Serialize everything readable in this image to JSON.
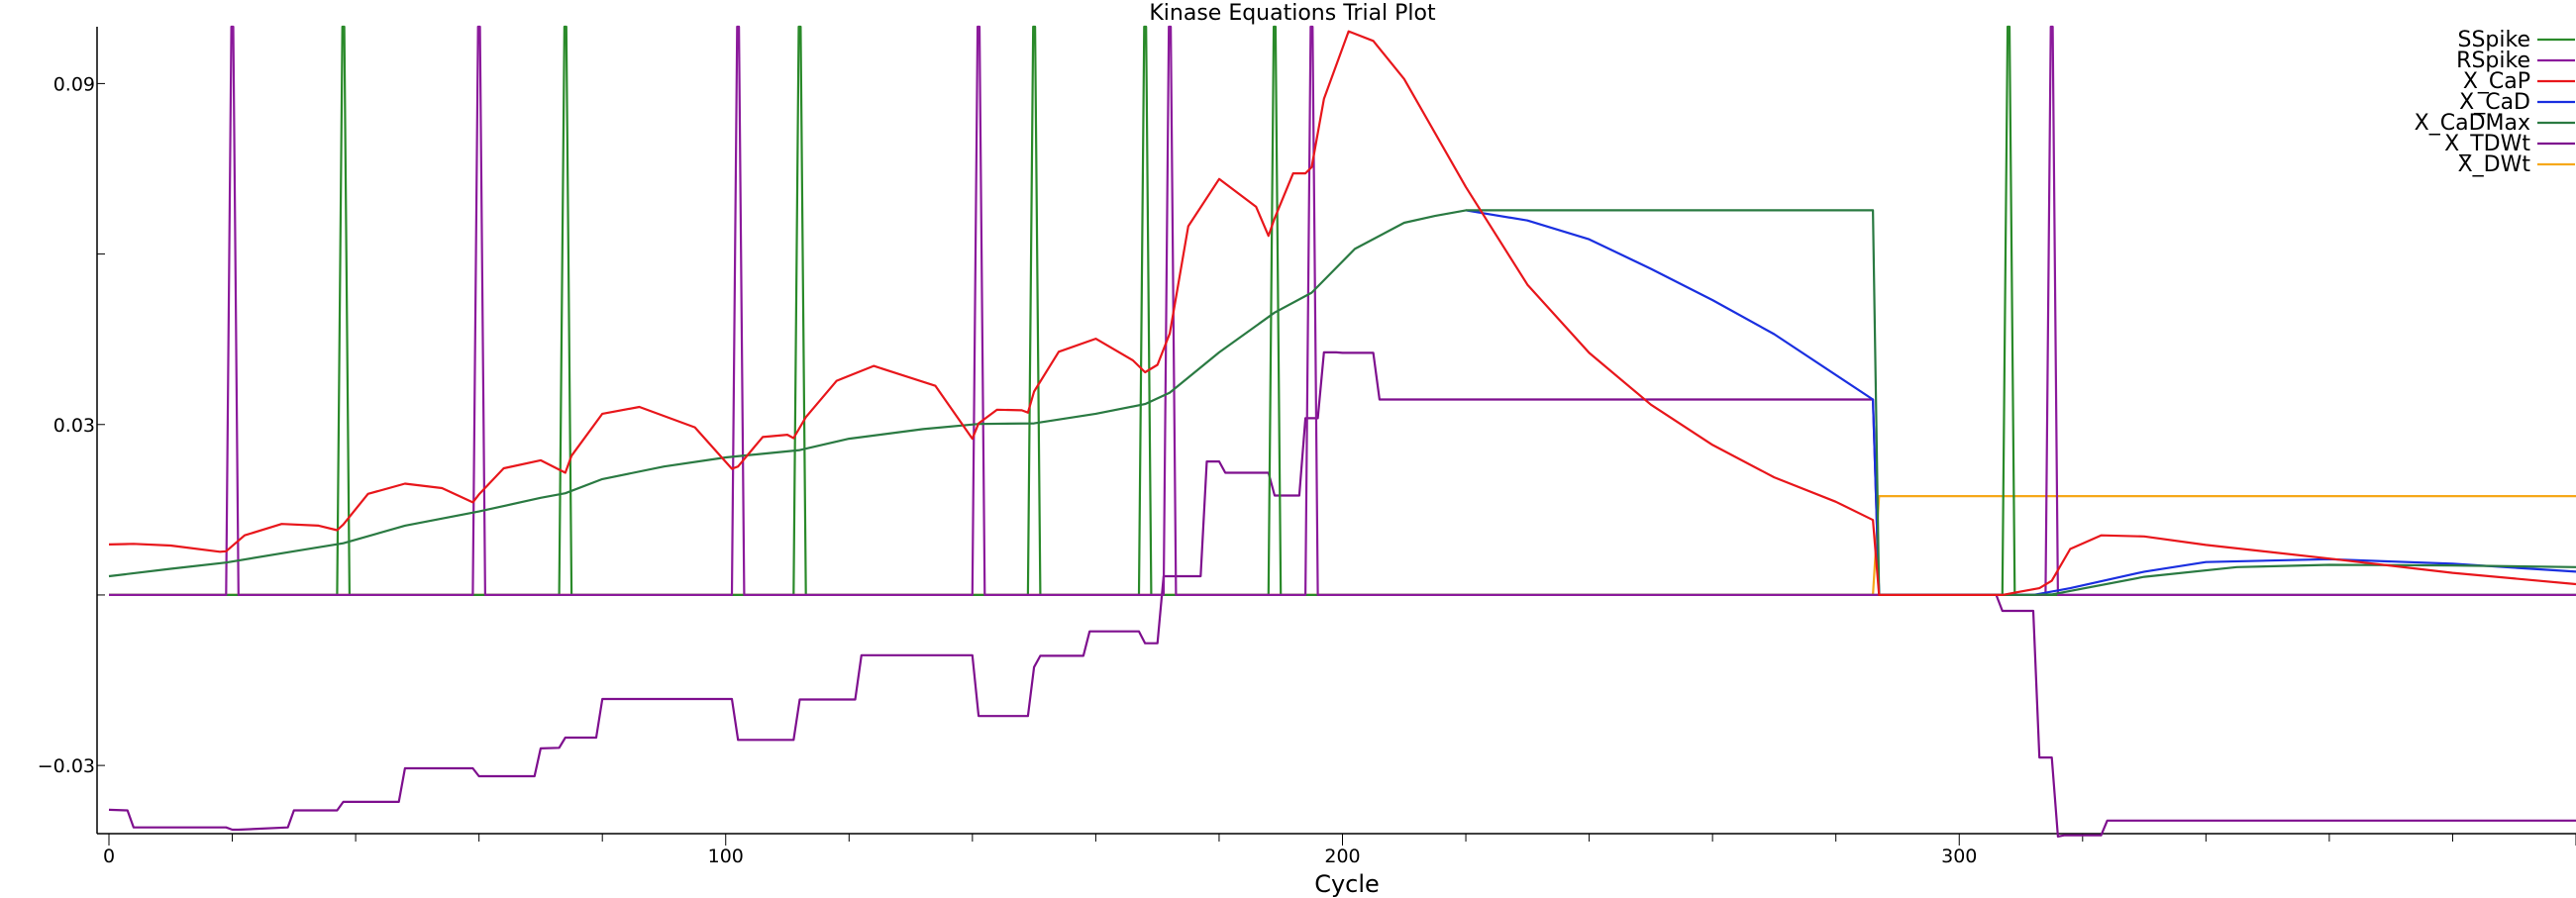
{
  "chart_data": {
    "type": "line",
    "title": "Kinase Equations Trial Plot",
    "xlabel": "Cycle",
    "ylabel": "",
    "xlim": [
      0,
      400
    ],
    "ylim": [
      -0.042,
      0.1
    ],
    "x_ticks": [
      0,
      100,
      200,
      300
    ],
    "x_tick_labels": [
      "0",
      "100",
      "200",
      "300"
    ],
    "y_ticks": [
      0.09,
      0.03,
      -0.03
    ],
    "y_tick_labels": [
      "0.09",
      "0.03",
      "−0.03"
    ],
    "grid": false,
    "legend_position": "top-right",
    "colors": {
      "SSpike": "#2a8a2a",
      "RSpike": "#8b1a9b",
      "X_CaP": "#e8161b",
      "X_CaD": "#1a2fe0",
      "X_CaDMax": "#2a7a42",
      "X_TDWt": "#7e0f8e",
      "X_DWt": "#f6a81a"
    },
    "series": [
      {
        "name": "SSpike",
        "spike_cycles": [
          38,
          74,
          112,
          150,
          168,
          189,
          308
        ],
        "values_note": "pulses from 0 to 0.1"
      },
      {
        "name": "RSpike",
        "spike_cycles": [
          20,
          60,
          102,
          141,
          172,
          195,
          315
        ],
        "values_note": "pulses from 0 to 0.1"
      },
      {
        "name": "X_CaP",
        "x": [
          0,
          4,
          10,
          18,
          19,
          22,
          28,
          34,
          37,
          38,
          42,
          48,
          54,
          59,
          60,
          64,
          70,
          74,
          75,
          80,
          86,
          95,
          101,
          102,
          106,
          110,
          111,
          113,
          118,
          124,
          134,
          140,
          141,
          144,
          148,
          149,
          150,
          154,
          160,
          166,
          168,
          170,
          172,
          175,
          180,
          186,
          188,
          189,
          192,
          194,
          195,
          197,
          201,
          205,
          210,
          220,
          230,
          240,
          250,
          260,
          270,
          280,
          286,
          287,
          300,
          307,
          313,
          315,
          318,
          323,
          330,
          340,
          360,
          380,
          400
        ],
        "values": [
          0.0089,
          0.009,
          0.0087,
          0.0076,
          0.0077,
          0.0105,
          0.0125,
          0.0122,
          0.0114,
          0.0124,
          0.0178,
          0.0196,
          0.0188,
          0.0163,
          0.0177,
          0.0223,
          0.0237,
          0.0215,
          0.0245,
          0.0319,
          0.0331,
          0.0295,
          0.0222,
          0.0226,
          0.0278,
          0.0282,
          0.0276,
          0.0313,
          0.0377,
          0.0403,
          0.0368,
          0.0275,
          0.0302,
          0.0326,
          0.0325,
          0.0321,
          0.0358,
          0.0428,
          0.0451,
          0.0413,
          0.0392,
          0.0405,
          0.046,
          0.0649,
          0.0732,
          0.0683,
          0.0632,
          0.0663,
          0.0742,
          0.0742,
          0.0753,
          0.0873,
          0.0992,
          0.0975,
          0.0908,
          0.0718,
          0.0546,
          0.0426,
          0.0335,
          0.0264,
          0.0207,
          0.0164,
          0.0132,
          0,
          0,
          0,
          0.0012,
          0.0025,
          0.0081,
          0.0105,
          0.0103,
          0.0088,
          0.0064,
          0.0039,
          0.0019
        ]
      },
      {
        "name": "X_CaD",
        "x": [
          220,
          230,
          240,
          250,
          260,
          270,
          286,
          287,
          300,
          312,
          318,
          330,
          340,
          360,
          380,
          400
        ],
        "values": [
          0.0677,
          0.0659,
          0.0626,
          0.0574,
          0.0519,
          0.0459,
          0.0344,
          0,
          0,
          0,
          0.0012,
          0.0041,
          0.0058,
          0.0063,
          0.0055,
          0.0041
        ]
      },
      {
        "name": "X_CaDMax",
        "x": [
          0,
          10,
          19,
          30,
          38,
          48,
          60,
          70,
          74,
          80,
          90,
          100,
          112,
          120,
          132,
          141,
          150,
          160,
          168,
          172,
          180,
          189,
          195,
          202,
          210,
          215,
          220,
          286,
          287,
          300,
          312,
          315,
          330,
          345,
          360,
          380,
          400
        ],
        "values": [
          0.0033,
          0.0046,
          0.0057,
          0.0077,
          0.0091,
          0.0122,
          0.0147,
          0.0171,
          0.0179,
          0.0204,
          0.0226,
          0.0242,
          0.0255,
          0.0275,
          0.0292,
          0.0301,
          0.0302,
          0.0319,
          0.0336,
          0.0356,
          0.0427,
          0.0497,
          0.0532,
          0.0609,
          0.0655,
          0.0667,
          0.0677,
          0.0677,
          0,
          0,
          0,
          0.0001,
          0.0032,
          0.0049,
          0.0053,
          0.0052,
          0.0049
        ]
      },
      {
        "name": "X_TDWt",
        "x": [
          0,
          3,
          4,
          19,
          20,
          21,
          29,
          30,
          37,
          38,
          47,
          48,
          59,
          60,
          69,
          70,
          73,
          74,
          79,
          80,
          101,
          102,
          111,
          112,
          121,
          122,
          140,
          141,
          149,
          150,
          151,
          158,
          159,
          167,
          168,
          170,
          171,
          177,
          178,
          180,
          181,
          188,
          189,
          193,
          194,
          196,
          197,
          199,
          200,
          205,
          206,
          286,
          287,
          306,
          307,
          312,
          313,
          315,
          316,
          317,
          323,
          324,
          400
        ],
        "values": [
          -0.0378,
          -0.0379,
          -0.0409,
          -0.0409,
          -0.0413,
          -0.0413,
          -0.0409,
          -0.0379,
          -0.0379,
          -0.0364,
          -0.0364,
          -0.0305,
          -0.0305,
          -0.0319,
          -0.0319,
          -0.027,
          -0.0269,
          -0.0251,
          -0.0251,
          -0.0183,
          -0.0183,
          -0.0255,
          -0.0255,
          -0.0184,
          -0.0184,
          -0.0106,
          -0.0106,
          -0.0213,
          -0.0213,
          -0.0127,
          -0.0107,
          -0.0107,
          -0.0064,
          -0.0064,
          -0.0085,
          -0.0085,
          0.0033,
          0.0033,
          0.0235,
          0.0235,
          0.0215,
          0.0215,
          0.0175,
          0.0175,
          0.0311,
          0.0311,
          0.0427,
          0.0427,
          0.0426,
          0.0426,
          0.0344,
          0.0344,
          0,
          0,
          -0.0028,
          -0.0028,
          -0.0286,
          -0.0286,
          -0.0425,
          -0.0423,
          -0.0423,
          -0.0397,
          -0.0397
        ]
      },
      {
        "name": "X_DWt",
        "x": [
          0,
          286,
          287,
          400
        ],
        "values": [
          0,
          0,
          0.0174,
          0.0174
        ]
      }
    ]
  }
}
